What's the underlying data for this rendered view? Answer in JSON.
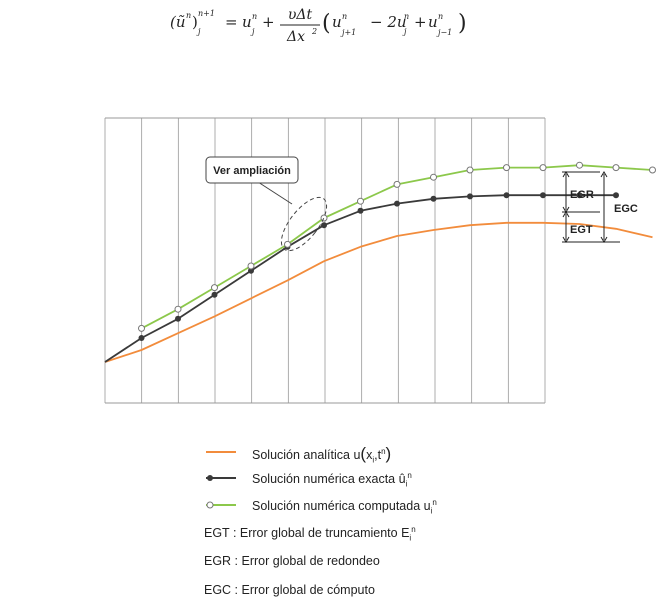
{
  "formula": {
    "lhs_base": "(ũ",
    "lhs_sup_inner": "n",
    "lhs_close": ")",
    "lhs_sub": "j",
    "lhs_sup_outer": "n+1",
    "equals": "=",
    "u": "u",
    "n": "n",
    "j": "j",
    "plus": "+",
    "frac_num": "υΔt",
    "frac_den": "Δx",
    "frac_den_sup": "2",
    "paren_open": "(",
    "paren_close": ")",
    "j_plus_1": "j+1",
    "minus_2u": "− 2u",
    "j_minus_1": "j−1"
  },
  "diagram": {
    "callout_label": "Ver ampliación",
    "brackets": {
      "egr": "EGR",
      "egt": "EGT",
      "egc": "EGC"
    },
    "colors": {
      "analytic": "#f28c3c",
      "exact": "#3a3a3a",
      "computed": "#8cc84b",
      "grid": "#999999"
    },
    "series": {
      "analytic": [
        0,
        10,
        24,
        38,
        53,
        68,
        84,
        96,
        105,
        110,
        114,
        116,
        116,
        115,
        111,
        104
      ],
      "exact": [
        0,
        20,
        36,
        56,
        76,
        96,
        114,
        126,
        132,
        136,
        138,
        139,
        139,
        139,
        139
      ],
      "computed": [
        28,
        44,
        62,
        80,
        98,
        120,
        134,
        148,
        154,
        160,
        162,
        162,
        164,
        162,
        160
      ]
    }
  },
  "legend": {
    "analytic_text": "Solución analítica u",
    "analytic_args": "x",
    "analytic_sub": "i",
    "analytic_comma": ",t",
    "analytic_sup": "n",
    "exact_text": "Solución numérica exacta û",
    "exact_sub": "i",
    "exact_sup": "n",
    "computed_text": "Solución numérica computada u",
    "computed_sub": "i",
    "computed_sup": "n",
    "egt_line": "EGT :  Error global de truncamiento E",
    "egt_sub": "i",
    "egt_sup": "n",
    "egr_line": "EGR :  Error global de redondeo",
    "egc_line": "EGC :  Error global de cómputo"
  }
}
